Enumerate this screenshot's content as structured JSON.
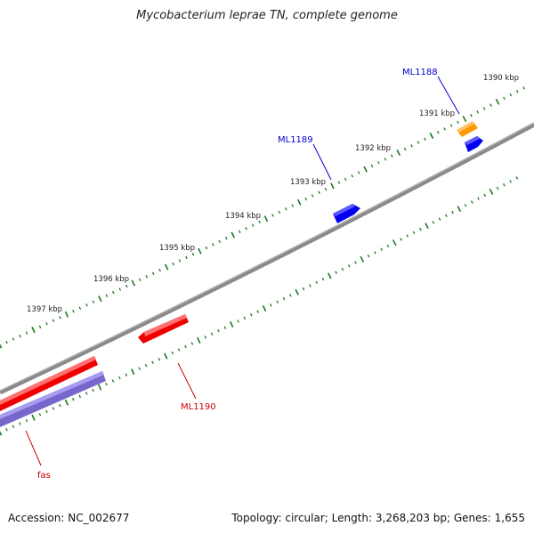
{
  "title": "Mycobacterium leprae TN, complete genome",
  "footer": {
    "accession": "Accession: NC_002677",
    "summary": "Topology: circular; Length: 3,268,203 bp; Genes: 1,655"
  },
  "ticks": [
    "1390 kbp",
    "1391 kbp",
    "1392 kbp",
    "1393 kbp",
    "1394 kbp",
    "1395 kbp",
    "1396 kbp",
    "1397 kbp"
  ],
  "genes": {
    "ML1188": "ML1188",
    "ML1189": "ML1189",
    "ML1190": "ML1190",
    "fas": "fas"
  },
  "colors": {
    "backbone": "#7f7f7f",
    "tick": "#1a7a1a",
    "forward_gene": "#0000ee",
    "reverse_gene": "#ee0000",
    "orange_gene": "#ff9900",
    "purple_gene": "#7766cc",
    "label_blue": "#0000cc",
    "label_red": "#cc0000"
  }
}
